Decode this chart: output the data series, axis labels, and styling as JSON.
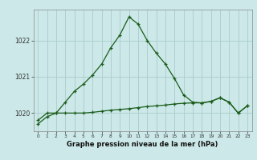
{
  "title": "Graphe pression niveau de la mer (hPa)",
  "bg_color": "#cce8e8",
  "grid_color": "#aacccc",
  "line_color": "#1a5c1a",
  "x_labels": [
    "0",
    "1",
    "2",
    "3",
    "4",
    "5",
    "6",
    "7",
    "8",
    "9",
    "10",
    "11",
    "12",
    "13",
    "14",
    "15",
    "16",
    "17",
    "18",
    "19",
    "20",
    "21",
    "22",
    "23"
  ],
  "y_ticks": [
    1020,
    1021,
    1022
  ],
  "ylim": [
    1019.5,
    1022.85
  ],
  "xlim": [
    -0.5,
    23.5
  ],
  "series1": [
    1019.7,
    1019.9,
    1020.0,
    1020.3,
    1020.6,
    1020.8,
    1021.05,
    1021.35,
    1021.8,
    1022.15,
    1022.65,
    1022.45,
    1022.0,
    1021.65,
    1021.35,
    1020.95,
    1020.5,
    1020.3,
    1020.28,
    1020.32,
    1020.42,
    1020.3,
    1020.0,
    1020.2
  ],
  "series2": [
    1019.8,
    1020.0,
    1020.0,
    1020.0,
    1020.0,
    1020.0,
    1020.02,
    1020.05,
    1020.08,
    1020.1,
    1020.12,
    1020.15,
    1020.18,
    1020.2,
    1020.22,
    1020.25,
    1020.27,
    1020.28,
    1020.28,
    1020.32,
    1020.42,
    1020.3,
    1020.0,
    1020.2
  ],
  "ylabel_fontsize": 5.5,
  "xlabel_fontsize": 4.2,
  "title_fontsize": 6.0
}
